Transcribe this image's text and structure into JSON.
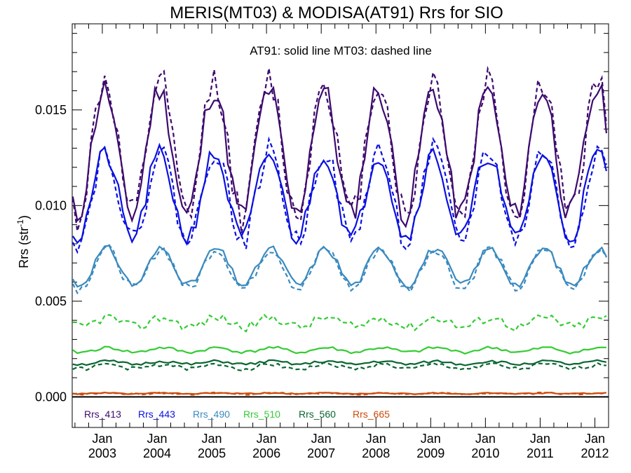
{
  "chart_data": {
    "type": "line",
    "title": "MERIS(MT03) & MODISA(AT91)  Rrs for SIO",
    "annotation": "AT91: solid line   MT03: dashed line",
    "ylabel": "Rrs (str",
    "ylabel_sup": "-1",
    "ylabel_close": ")",
    "ylim": [
      -0.0016,
      0.0195
    ],
    "xlim": [
      2002.45,
      2012.25
    ],
    "yticks": [
      0.0,
      0.005,
      0.01,
      0.015
    ],
    "ytick_labels": [
      "0.000",
      "0.005",
      "0.010",
      "0.015"
    ],
    "xticks": [
      2003,
      2004,
      2005,
      2006,
      2007,
      2008,
      2009,
      2010,
      2011,
      2012
    ],
    "xtick_month": "Jan",
    "xtick_labels": [
      "2003",
      "2004",
      "2005",
      "2006",
      "2007",
      "2008",
      "2009",
      "2010",
      "2011",
      "2012"
    ],
    "zero_line": 0.0,
    "legend_position": "bottom-left",
    "series": [
      {
        "name": "Rrs_413",
        "color": "#3d0a6e",
        "sensor": "AT91",
        "dash": false,
        "base": 0.0128,
        "amp": 0.0033,
        "phase": 0.04,
        "noise": 0.0007,
        "seed": 11
      },
      {
        "name": "Rrs_413",
        "color": "#3d0a6e",
        "sensor": "MT03",
        "dash": true,
        "base": 0.013,
        "amp": 0.0036,
        "phase": 0.05,
        "noise": 0.0009,
        "seed": 12
      },
      {
        "name": "Rrs_443",
        "color": "#0a10e0",
        "sensor": "AT91",
        "dash": false,
        "base": 0.0105,
        "amp": 0.0022,
        "phase": 0.05,
        "noise": 0.0005,
        "seed": 21
      },
      {
        "name": "Rrs_443",
        "color": "#0a10e0",
        "sensor": "MT03",
        "dash": true,
        "base": 0.0105,
        "amp": 0.0024,
        "phase": 0.06,
        "noise": 0.0006,
        "seed": 22
      },
      {
        "name": "Rrs_490",
        "color": "#3a8abf",
        "sensor": "AT91",
        "dash": false,
        "base": 0.0068,
        "amp": 0.00095,
        "phase": 0.08,
        "noise": 0.0002,
        "seed": 31
      },
      {
        "name": "Rrs_490",
        "color": "#3a8abf",
        "sensor": "MT03",
        "dash": true,
        "base": 0.0067,
        "amp": 0.00105,
        "phase": 0.08,
        "noise": 0.00025,
        "seed": 32
      },
      {
        "name": "Rrs_510",
        "color": "#33cc33",
        "sensor": "AT91",
        "dash": false,
        "base": 0.00245,
        "amp": 0.00012,
        "phase": 0.1,
        "noise": 8e-05,
        "seed": 41
      },
      {
        "name": "Rrs_510",
        "color": "#33cc33",
        "sensor": "MT03",
        "dash": true,
        "base": 0.0039,
        "amp": 0.00025,
        "phase": 0.1,
        "noise": 0.00025,
        "seed": 42
      },
      {
        "name": "Rrs_560",
        "color": "#0a6632",
        "sensor": "AT91",
        "dash": false,
        "base": 0.00178,
        "amp": 8e-05,
        "phase": 0.1,
        "noise": 7e-05,
        "seed": 51
      },
      {
        "name": "Rrs_560",
        "color": "#0a6632",
        "sensor": "MT03",
        "dash": true,
        "base": 0.00158,
        "amp": 0.00012,
        "phase": 0.1,
        "noise": 0.0001,
        "seed": 52
      },
      {
        "name": "Rrs_665",
        "color": "#cc4a0a",
        "sensor": "AT91",
        "dash": false,
        "base": 0.00018,
        "amp": 2e-05,
        "phase": 0.1,
        "noise": 3e-05,
        "seed": 61
      },
      {
        "name": "Rrs_665",
        "color": "#cc4a0a",
        "sensor": "MT03",
        "dash": true,
        "base": 0.00017,
        "amp": 3e-05,
        "phase": 0.1,
        "noise": 4e-05,
        "seed": 62
      }
    ],
    "legend": [
      {
        "label": "Rrs_413",
        "color": "#3d0a6e"
      },
      {
        "label": "Rrs_443",
        "color": "#0a10e0"
      },
      {
        "label": "Rrs_490",
        "color": "#3a8abf"
      },
      {
        "label": "Rrs_510",
        "color": "#33cc33"
      },
      {
        "label": "Rrs_560",
        "color": "#0a6632"
      },
      {
        "label": "Rrs_665",
        "color": "#cc4a0a"
      }
    ]
  }
}
